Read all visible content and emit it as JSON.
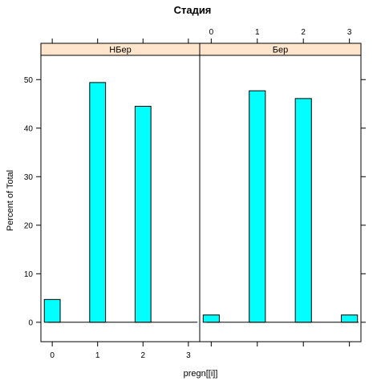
{
  "chart_data": {
    "type": "bar",
    "title": "Стадия",
    "xlabel": "pregn[[i]]",
    "ylabel": "Percent of Total",
    "x_ticks": [
      0,
      1,
      2,
      3
    ],
    "y_ticks": [
      0,
      10,
      20,
      30,
      40,
      50
    ],
    "xlim": [
      -0.25,
      3.25
    ],
    "ylim": [
      -4,
      55
    ],
    "bar_width": 0.35,
    "fill_color": "#00ffff",
    "strip_color": "#ffe5cc",
    "panels": [
      {
        "strip": "НБер",
        "x": [
          0,
          1,
          2,
          3
        ],
        "values": [
          4.7,
          49.4,
          44.5,
          0
        ]
      },
      {
        "strip": "Бер",
        "x": [
          0,
          1,
          2,
          3
        ],
        "values": [
          1.5,
          47.7,
          46.1,
          1.5
        ]
      }
    ]
  }
}
